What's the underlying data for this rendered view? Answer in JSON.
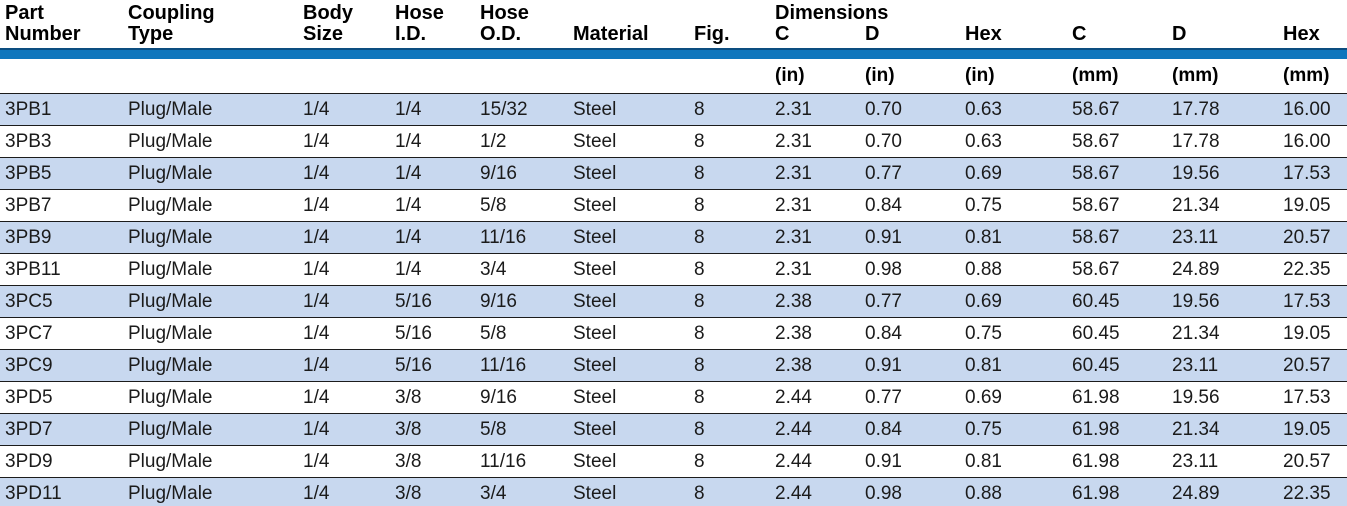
{
  "table": {
    "title": "Coupling specification table",
    "column_keys": [
      "part_number",
      "coupling_type",
      "body_size",
      "hose_id",
      "hose_od",
      "material",
      "fig",
      "c_in",
      "d_in",
      "hex_in",
      "c_mm",
      "d_mm",
      "hex_mm"
    ],
    "header": {
      "columns": [
        {
          "line1": "Part",
          "line2": "Number"
        },
        {
          "line1": "Coupling",
          "line2": "Type"
        },
        {
          "line1": "Body",
          "line2": "Size"
        },
        {
          "line1": "Hose",
          "line2": "I.D."
        },
        {
          "line1": "Hose",
          "line2": "O.D."
        },
        {
          "line1": "",
          "line2": "Material"
        },
        {
          "line1": "",
          "line2": "Fig."
        },
        {
          "line1": "Dimensions",
          "line2": "C"
        },
        {
          "line1": "",
          "line2": "D"
        },
        {
          "line1": "",
          "line2": "Hex"
        },
        {
          "line1": "",
          "line2": "C"
        },
        {
          "line1": "",
          "line2": "D"
        },
        {
          "line1": "",
          "line2": "Hex"
        }
      ],
      "units": [
        "",
        "",
        "",
        "",
        "",
        "",
        "",
        "(in)",
        "(in)",
        "(in)",
        "(mm)",
        "(mm)",
        "(mm)"
      ]
    },
    "rows": [
      [
        "3PB1",
        "Plug/Male",
        "1/4",
        "1/4",
        "15/32",
        "Steel",
        "8",
        "2.31",
        "0.70",
        "0.63",
        "58.67",
        "17.78",
        "16.00"
      ],
      [
        "3PB3",
        "Plug/Male",
        "1/4",
        "1/4",
        "1/2",
        "Steel",
        "8",
        "2.31",
        "0.70",
        "0.63",
        "58.67",
        "17.78",
        "16.00"
      ],
      [
        "3PB5",
        "Plug/Male",
        "1/4",
        "1/4",
        "9/16",
        "Steel",
        "8",
        "2.31",
        "0.77",
        "0.69",
        "58.67",
        "19.56",
        "17.53"
      ],
      [
        "3PB7",
        "Plug/Male",
        "1/4",
        "1/4",
        "5/8",
        "Steel",
        "8",
        "2.31",
        "0.84",
        "0.75",
        "58.67",
        "21.34",
        "19.05"
      ],
      [
        "3PB9",
        "Plug/Male",
        "1/4",
        "1/4",
        "11/16",
        "Steel",
        "8",
        "2.31",
        "0.91",
        "0.81",
        "58.67",
        "23.11",
        "20.57"
      ],
      [
        "3PB11",
        "Plug/Male",
        "1/4",
        "1/4",
        "3/4",
        "Steel",
        "8",
        "2.31",
        "0.98",
        "0.88",
        "58.67",
        "24.89",
        "22.35"
      ],
      [
        "3PC5",
        "Plug/Male",
        "1/4",
        "5/16",
        "9/16",
        "Steel",
        "8",
        "2.38",
        "0.77",
        "0.69",
        "60.45",
        "19.56",
        "17.53"
      ],
      [
        "3PC7",
        "Plug/Male",
        "1/4",
        "5/16",
        "5/8",
        "Steel",
        "8",
        "2.38",
        "0.84",
        "0.75",
        "60.45",
        "21.34",
        "19.05"
      ],
      [
        "3PC9",
        "Plug/Male",
        "1/4",
        "5/16",
        "11/16",
        "Steel",
        "8",
        "2.38",
        "0.91",
        "0.81",
        "60.45",
        "23.11",
        "20.57"
      ],
      [
        "3PD5",
        "Plug/Male",
        "1/4",
        "3/8",
        "9/16",
        "Steel",
        "8",
        "2.44",
        "0.77",
        "0.69",
        "61.98",
        "19.56",
        "17.53"
      ],
      [
        "3PD7",
        "Plug/Male",
        "1/4",
        "3/8",
        "5/8",
        "Steel",
        "8",
        "2.44",
        "0.84",
        "0.75",
        "61.98",
        "21.34",
        "19.05"
      ],
      [
        "3PD9",
        "Plug/Male",
        "1/4",
        "3/8",
        "11/16",
        "Steel",
        "8",
        "2.44",
        "0.91",
        "0.81",
        "61.98",
        "23.11",
        "20.57"
      ],
      [
        "3PD11",
        "Plug/Male",
        "1/4",
        "3/8",
        "3/4",
        "Steel",
        "8",
        "2.44",
        "0.98",
        "0.88",
        "61.98",
        "24.89",
        "22.35"
      ]
    ],
    "shaded_row_indices": [
      0,
      2,
      4,
      6,
      8,
      10,
      12
    ]
  },
  "colors": {
    "accent_bar_blue": "#0f76bd",
    "accent_bar_top_edge": "#0c4d80",
    "row_shade_blue": "#c8d8ef",
    "row_separator": "#1c1c1c",
    "header_text": "#000000",
    "body_text": "#1b1b1b"
  }
}
